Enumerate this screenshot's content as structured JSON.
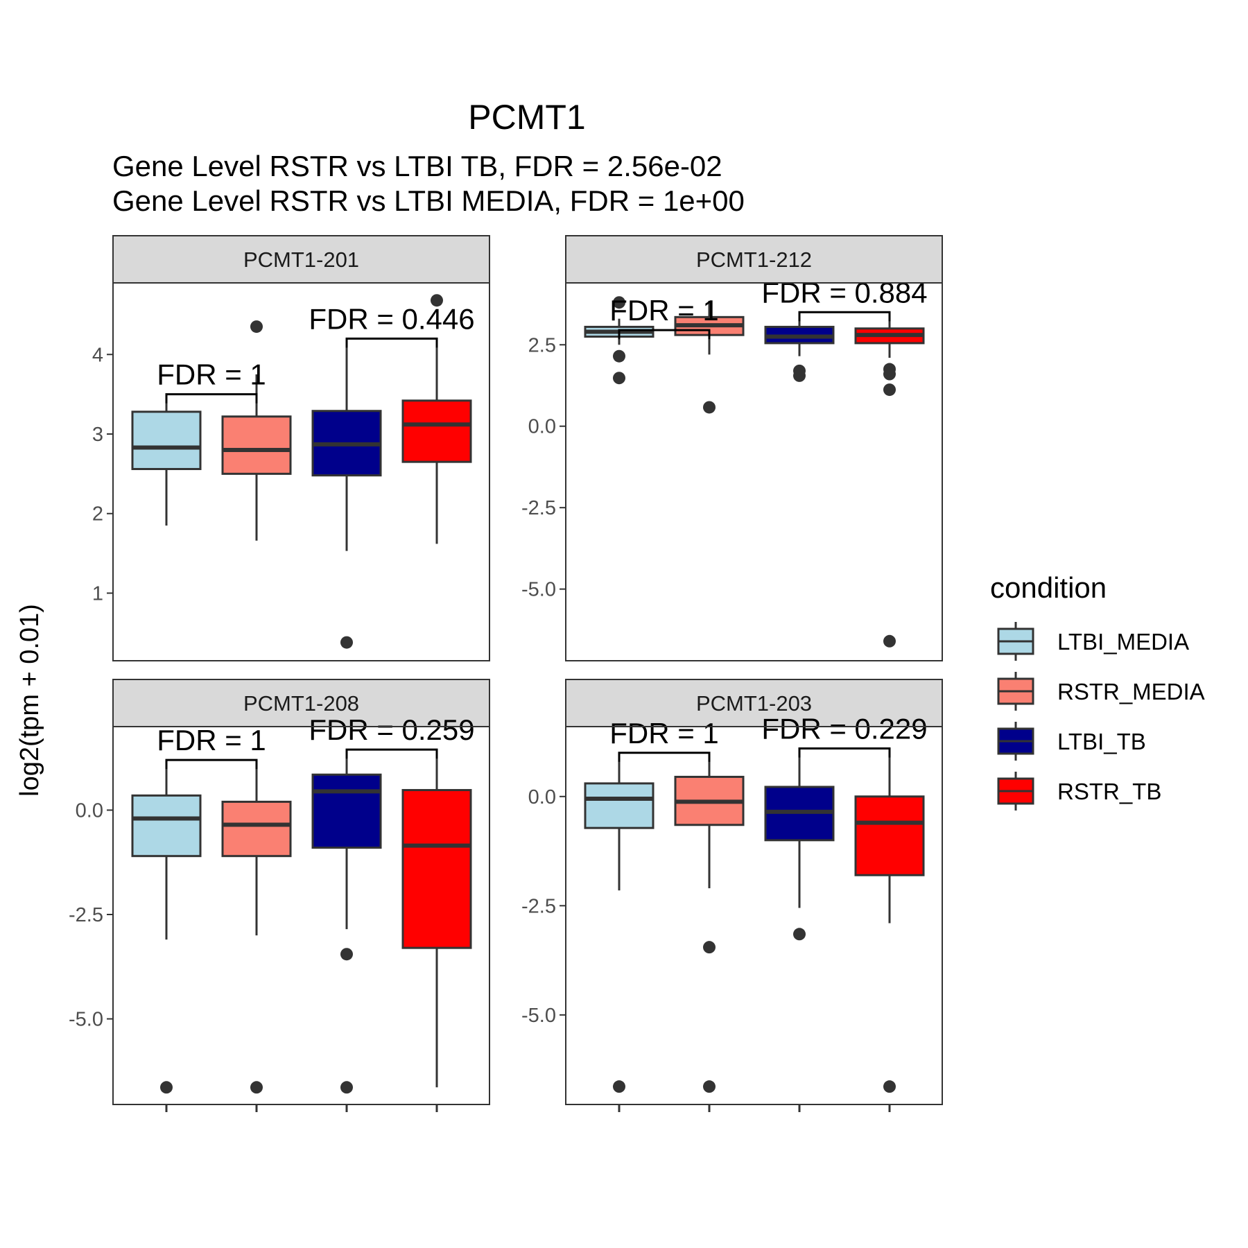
{
  "chart_data": {
    "type": "boxplot",
    "title": "PCMT1",
    "subtitle": [
      "Gene Level RSTR vs LTBI TB, FDR =  2.56e-02",
      "Gene Level RSTR vs LTBI MEDIA, FDR =  1e+00"
    ],
    "ylabel": "log2(tpm + 0.01)",
    "legend": {
      "title": "condition",
      "position": "right",
      "items": [
        {
          "label": "LTBI_MEDIA",
          "color": "#add8e6"
        },
        {
          "label": "RSTR_MEDIA",
          "color": "#fa8072"
        },
        {
          "label": "LTBI_TB",
          "color": "#00008b"
        },
        {
          "label": "RSTR_TB",
          "color": "#ff0000"
        }
      ]
    },
    "panels": [
      {
        "name": "PCMT1-201",
        "ylim": [
          0.15,
          4.9
        ],
        "yticks": [
          1,
          2,
          3,
          4
        ],
        "ytick_labels": [
          "1",
          "2",
          "3",
          "4"
        ],
        "boxes": [
          {
            "group": "LTBI_MEDIA",
            "whisker_low": 1.85,
            "q1": 2.56,
            "median": 2.83,
            "q3": 3.28,
            "whisker_high": 3.48,
            "outliers": []
          },
          {
            "group": "RSTR_MEDIA",
            "whisker_low": 1.66,
            "q1": 2.5,
            "median": 2.8,
            "q3": 3.22,
            "whisker_high": 3.75,
            "outliers": [
              4.35
            ]
          },
          {
            "group": "LTBI_TB",
            "whisker_low": 1.53,
            "q1": 2.48,
            "median": 2.87,
            "q3": 3.29,
            "whisker_high": 4.2,
            "outliers": [
              0.38
            ]
          },
          {
            "group": "RSTR_TB",
            "whisker_low": 1.62,
            "q1": 2.65,
            "median": 3.12,
            "q3": 3.42,
            "whisker_high": 4.2,
            "outliers": [
              4.68
            ]
          }
        ],
        "annotations": [
          {
            "label": "FDR =  1",
            "between": [
              "LTBI_MEDIA",
              "RSTR_MEDIA"
            ],
            "y": 3.5
          },
          {
            "label": "FDR =  0.446",
            "between": [
              "LTBI_TB",
              "RSTR_TB"
            ],
            "y": 4.2
          }
        ]
      },
      {
        "name": "PCMT1-212",
        "ylim": [
          -7.2,
          4.4
        ],
        "yticks": [
          -5,
          -2.5,
          0,
          2.5
        ],
        "ytick_labels": [
          "-5.0",
          "-2.5",
          "0.0",
          "2.5"
        ],
        "boxes": [
          {
            "group": "LTBI_MEDIA",
            "whisker_low": 2.5,
            "q1": 2.75,
            "median": 2.9,
            "q3": 3.05,
            "whisker_high": 3.3,
            "outliers": [
              3.8,
              2.15,
              1.48
            ]
          },
          {
            "group": "RSTR_MEDIA",
            "whisker_low": 2.2,
            "q1": 2.8,
            "median": 3.1,
            "q3": 3.35,
            "whisker_high": 3.85,
            "outliers": [
              0.58
            ]
          },
          {
            "group": "LTBI_TB",
            "whisker_low": 2.15,
            "q1": 2.55,
            "median": 2.75,
            "q3": 3.05,
            "whisker_high": 3.5,
            "outliers": [
              1.7,
              1.55
            ]
          },
          {
            "group": "RSTR_TB",
            "whisker_low": 2.1,
            "q1": 2.55,
            "median": 2.8,
            "q3": 3.0,
            "whisker_high": 3.5,
            "outliers": [
              1.75,
              1.6,
              1.12,
              -6.6
            ]
          }
        ],
        "annotations": [
          {
            "label": "FDR =  1",
            "between": [
              "LTBI_MEDIA",
              "RSTR_MEDIA"
            ],
            "y": 2.95
          },
          {
            "label": "FDR =  0.884",
            "between": [
              "LTBI_TB",
              "RSTR_TB"
            ],
            "y": 3.5
          }
        ]
      },
      {
        "name": "PCMT1-208",
        "ylim": [
          -7.05,
          2.0
        ],
        "yticks": [
          -5,
          -2.5,
          0
        ],
        "ytick_labels": [
          "-5.0",
          "-2.5",
          "0.0"
        ],
        "boxes": [
          {
            "group": "LTBI_MEDIA",
            "whisker_low": -3.1,
            "q1": -1.1,
            "median": -0.2,
            "q3": 0.35,
            "whisker_high": 1.2,
            "outliers": [
              -6.64
            ]
          },
          {
            "group": "RSTR_MEDIA",
            "whisker_low": -3.0,
            "q1": -1.1,
            "median": -0.35,
            "q3": 0.2,
            "whisker_high": 1.2,
            "outliers": [
              -6.64
            ]
          },
          {
            "group": "LTBI_TB",
            "whisker_low": -2.85,
            "q1": -0.9,
            "median": 0.45,
            "q3": 0.85,
            "whisker_high": 1.45,
            "outliers": [
              -3.45,
              -6.64
            ]
          },
          {
            "group": "RSTR_TB",
            "whisker_low": -6.64,
            "q1": -3.3,
            "median": -0.85,
            "q3": 0.48,
            "whisker_high": 1.45,
            "outliers": []
          }
        ],
        "annotations": [
          {
            "label": "FDR =  1",
            "between": [
              "LTBI_MEDIA",
              "RSTR_MEDIA"
            ],
            "y": 1.2
          },
          {
            "label": "FDR =  0.259",
            "between": [
              "LTBI_TB",
              "RSTR_TB"
            ],
            "y": 1.45
          }
        ]
      },
      {
        "name": "PCMT1-203",
        "ylim": [
          -7.05,
          1.6
        ],
        "yticks": [
          -5,
          -2.5,
          0
        ],
        "ytick_labels": [
          "-5.0",
          "-2.5",
          "0.0"
        ],
        "boxes": [
          {
            "group": "LTBI_MEDIA",
            "whisker_low": -2.15,
            "q1": -0.72,
            "median": -0.05,
            "q3": 0.3,
            "whisker_high": 1.0,
            "outliers": [
              -6.64
            ]
          },
          {
            "group": "RSTR_MEDIA",
            "whisker_low": -2.1,
            "q1": -0.65,
            "median": -0.12,
            "q3": 0.45,
            "whisker_high": 1.0,
            "outliers": [
              -3.45,
              -6.64
            ]
          },
          {
            "group": "LTBI_TB",
            "whisker_low": -2.55,
            "q1": -1.0,
            "median": -0.35,
            "q3": 0.22,
            "whisker_high": 1.1,
            "outliers": [
              -3.15
            ]
          },
          {
            "group": "RSTR_TB",
            "whisker_low": -2.9,
            "q1": -1.8,
            "median": -0.6,
            "q3": 0.0,
            "whisker_high": 1.1,
            "outliers": [
              -6.64
            ]
          }
        ],
        "annotations": [
          {
            "label": "FDR =  1",
            "between": [
              "LTBI_MEDIA",
              "RSTR_MEDIA"
            ],
            "y": 1.0
          },
          {
            "label": "FDR =  0.229",
            "between": [
              "LTBI_TB",
              "RSTR_TB"
            ],
            "y": 1.1
          }
        ]
      }
    ]
  }
}
